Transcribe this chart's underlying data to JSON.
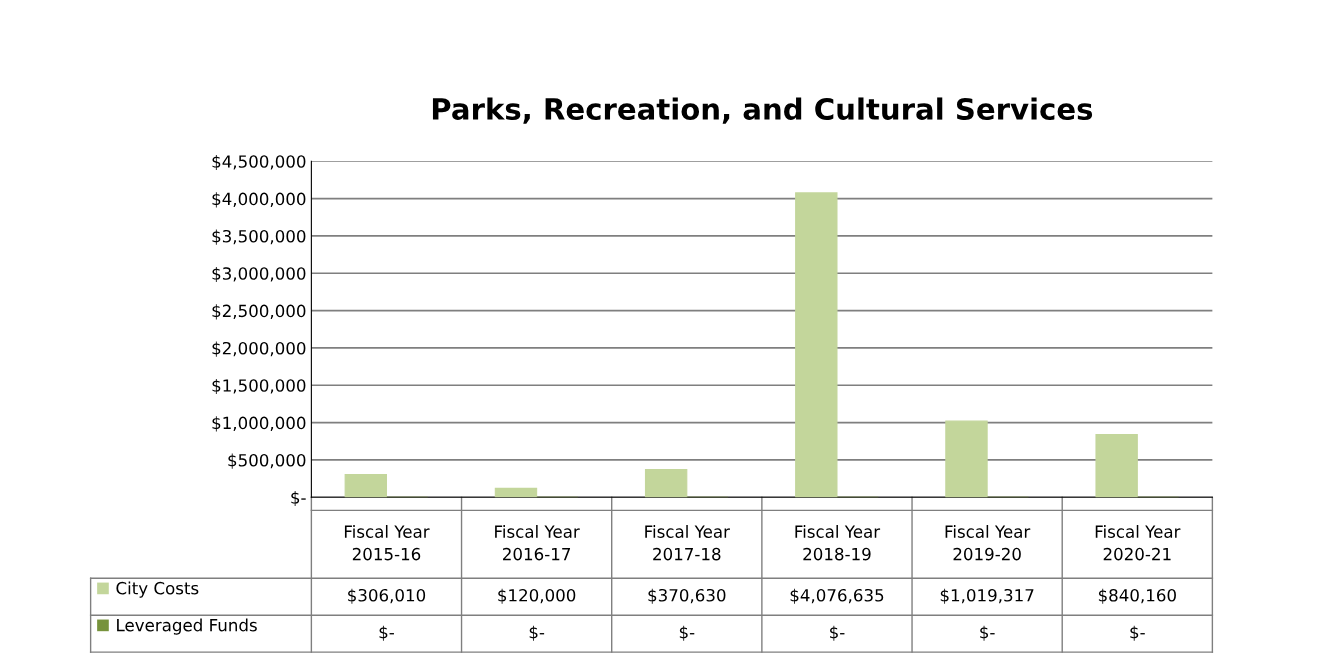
{
  "chart_data": {
    "type": "bar",
    "title": "Parks, Recreation, and Cultural Services",
    "categories": [
      "Fiscal Year\n2015-16",
      "Fiscal Year\n2016-17",
      "Fiscal Year\n2017-18",
      "Fiscal Year\n2018-19",
      "Fiscal Year\n2019-20",
      "Fiscal Year\n2020-21"
    ],
    "series": [
      {
        "name": "City Costs",
        "color": "#c3d69b",
        "values": [
          306010,
          120000,
          370630,
          4076635,
          1019317,
          840160
        ],
        "value_labels": [
          "$306,010",
          "$120,000",
          "$370,630",
          "$4,076,635",
          "$1,019,317",
          "$840,160"
        ]
      },
      {
        "name": "Leveraged Funds",
        "color": "#77933c",
        "values": [
          0,
          0,
          0,
          0,
          0,
          0
        ],
        "value_labels": [
          "$-",
          "$-",
          "$-",
          "$-",
          "$-",
          "$-"
        ]
      }
    ],
    "ylim": [
      0,
      4500000
    ],
    "yticks": [
      {
        "value": 0,
        "label": "$-"
      },
      {
        "value": 500000,
        "label": "$500,000"
      },
      {
        "value": 1000000,
        "label": "$1,000,000"
      },
      {
        "value": 1500000,
        "label": "$1,500,000"
      },
      {
        "value": 2000000,
        "label": "$2,000,000"
      },
      {
        "value": 2500000,
        "label": "$2,500,000"
      },
      {
        "value": 3000000,
        "label": "$3,000,000"
      },
      {
        "value": 3500000,
        "label": "$3,500,000"
      },
      {
        "value": 4000000,
        "label": "$4,000,000"
      },
      {
        "value": 4500000,
        "label": "$4,500,000"
      }
    ],
    "grid": "y",
    "legend": "bottom"
  }
}
